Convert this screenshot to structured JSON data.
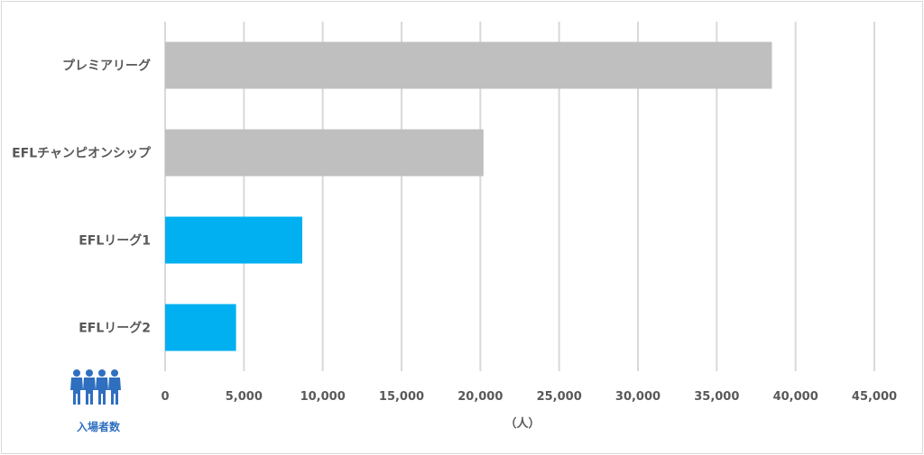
{
  "chart_data": {
    "type": "bar",
    "orientation": "horizontal",
    "categories": [
      "プレミアリーグ",
      "EFLチャンピオンシップ",
      "EFLリーグ1",
      "EFLリーグ2"
    ],
    "values": [
      38500,
      20200,
      8700,
      4500
    ],
    "bar_colors": [
      "#bfbfbf",
      "#bfbfbf",
      "#00b0f0",
      "#00b0f0"
    ],
    "xlim": [
      0,
      45000
    ],
    "xticks": [
      0,
      5000,
      10000,
      15000,
      20000,
      25000,
      30000,
      35000,
      40000,
      45000
    ],
    "xtick_labels": [
      "0",
      "5,000",
      "10,000",
      "15,000",
      "20,000",
      "25,000",
      "30,000",
      "35,000",
      "40,000",
      "45,000"
    ],
    "xlabel": "（人）",
    "grid": "vertical",
    "legend": "none"
  },
  "icon": {
    "name": "people-icon",
    "color": "#2f6fc0",
    "label": "入場者数"
  }
}
